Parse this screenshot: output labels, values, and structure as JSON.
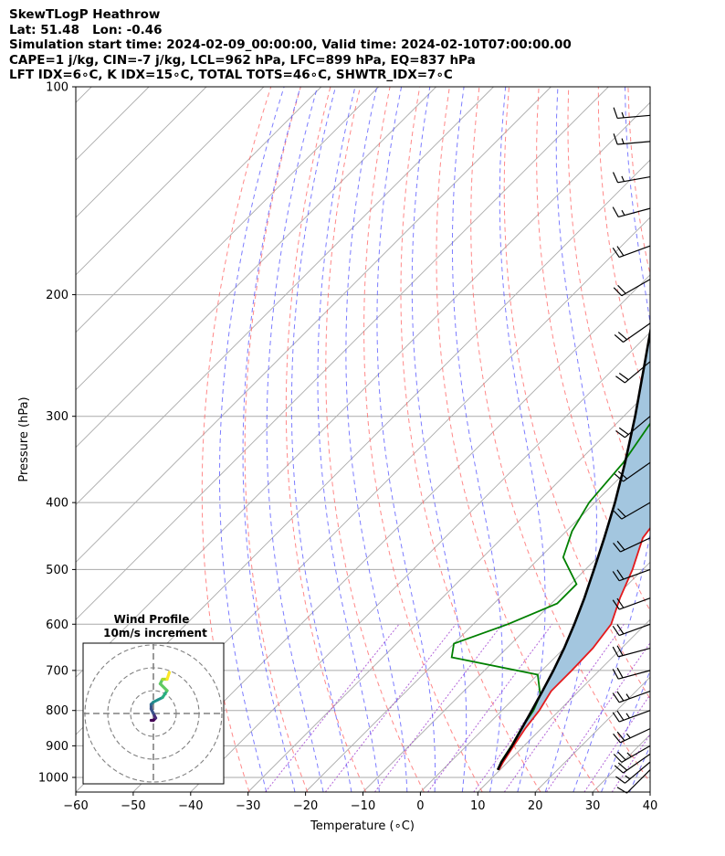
{
  "header": {
    "line1": "SkewTLogP Heathrow",
    "line2": "Lat: 51.48   Lon: -0.46",
    "line3": "Simulation start time: 2024-02-09_00:00:00, Valid time: 2024-02-10T07:00:00.00",
    "line4": "CAPE=1 j/kg, CIN=-7 j/kg, LCL=962 hPa, LFC=899 hPa, EQ=837 hPa",
    "line5": "LFT IDX=6∘C, K IDX=15∘C, TOTAL TOTS=46∘C, SHWTR_IDX=7∘C"
  },
  "colors": {
    "temperature": "#e41a1c",
    "dewpoint": "#008000",
    "parcel": "#000000",
    "cape_fill": "#a3c6df",
    "dry_adiabats": "#ff6060",
    "moist_adiabats": "#5050ff",
    "mixing_ratio": "#9932cc",
    "isotherms": "#aaaaaa"
  },
  "chart_data": [
    {
      "type": "line",
      "subtype": "skew-t log-p",
      "xlabel": "Temperature (∘C)",
      "ylabel": "Pressure (hPa)",
      "xlim": [
        -60,
        40
      ],
      "ylim": [
        1050,
        100
      ],
      "y_scale": "log",
      "grid": true,
      "x_ticks": [
        "−60",
        "−50",
        "−40",
        "−30",
        "−20",
        "−10",
        "0",
        "10",
        "20",
        "30",
        "40"
      ],
      "y_ticks": [
        "100",
        "200",
        "300",
        "400",
        "500",
        "600",
        "700",
        "800",
        "900",
        "1000"
      ],
      "series": [
        {
          "key": "temperature",
          "points": [
            [
              9.8,
              975
            ],
            [
              9.2,
              950
            ],
            [
              8.2,
              900
            ],
            [
              7.2,
              850
            ],
            [
              6.5,
              800
            ],
            [
              5.2,
              750
            ],
            [
              5.2,
              700
            ],
            [
              5.0,
              650
            ],
            [
              4.0,
              600
            ],
            [
              1.0,
              550
            ],
            [
              -1.8,
              500
            ],
            [
              -5.5,
              450
            ],
            [
              -7.0,
              400
            ],
            [
              -12,
              350
            ],
            [
              -16.5,
              300
            ],
            [
              -20,
              265
            ],
            [
              -20,
              250
            ],
            [
              -17,
              225
            ],
            [
              -13,
              200
            ],
            [
              -9,
              180
            ],
            [
              -7.5,
              165
            ],
            [
              -7.5,
              150
            ],
            [
              -8,
              140
            ],
            [
              -8,
              130
            ],
            [
              -8,
              120
            ],
            [
              -7,
              110
            ],
            [
              -6.5,
              100
            ]
          ]
        },
        {
          "key": "dewpoint",
          "points": [
            [
              9.6,
              975
            ],
            [
              8.8,
              950
            ],
            [
              7.8,
              900
            ],
            [
              6.5,
              850
            ],
            [
              5.5,
              800
            ],
            [
              4.0,
              760
            ],
            [
              0.0,
              710
            ],
            [
              -18,
              670
            ],
            [
              -20,
              640
            ],
            [
              -14,
              600
            ],
            [
              -9,
              560
            ],
            [
              -9,
              525
            ],
            [
              -16,
              480
            ],
            [
              -19,
              440
            ],
            [
              -21,
              400
            ],
            [
              -22,
              350
            ],
            [
              -24.5,
              300
            ],
            [
              -26.5,
              270
            ],
            [
              -27,
              240
            ],
            [
              -28,
              210
            ],
            [
              -30.5,
              185
            ],
            [
              -33.5,
              170
            ],
            [
              -36,
              155
            ],
            [
              -39,
              140
            ],
            [
              -42,
              120
            ],
            [
              -44,
              100
            ]
          ]
        },
        {
          "key": "parcel",
          "points": [
            [
              9.6,
              975
            ],
            [
              8.9,
              950
            ],
            [
              7.9,
              900
            ],
            [
              6.6,
              850
            ],
            [
              5.2,
              800
            ],
            [
              3.7,
              750
            ],
            [
              2.0,
              700
            ],
            [
              0.0,
              650
            ],
            [
              -2.4,
              600
            ],
            [
              -5.2,
              550
            ],
            [
              -8.5,
              500
            ],
            [
              -12.2,
              450
            ],
            [
              -16.5,
              400
            ],
            [
              -21.7,
              350
            ],
            [
              -28,
              300
            ],
            [
              -35.8,
              250
            ],
            [
              -45.4,
              200
            ],
            [
              -52,
              175
            ],
            [
              -57.9,
              150
            ],
            [
              -63.5,
              130
            ],
            [
              -68.5,
              115
            ],
            [
              -71.5,
              100
            ]
          ]
        }
      ],
      "wind_barbs": [
        {
          "p": 975,
          "speed_kt": 10,
          "dir_deg": 225
        },
        {
          "p": 950,
          "speed_kt": 15,
          "dir_deg": 230
        },
        {
          "p": 925,
          "speed_kt": 20,
          "dir_deg": 235
        },
        {
          "p": 900,
          "speed_kt": 25,
          "dir_deg": 240
        },
        {
          "p": 850,
          "speed_kt": 25,
          "dir_deg": 245
        },
        {
          "p": 800,
          "speed_kt": 25,
          "dir_deg": 250
        },
        {
          "p": 750,
          "speed_kt": 25,
          "dir_deg": 250
        },
        {
          "p": 700,
          "speed_kt": 20,
          "dir_deg": 255
        },
        {
          "p": 650,
          "speed_kt": 20,
          "dir_deg": 255
        },
        {
          "p": 600,
          "speed_kt": 20,
          "dir_deg": 250
        },
        {
          "p": 550,
          "speed_kt": 20,
          "dir_deg": 250
        },
        {
          "p": 500,
          "speed_kt": 20,
          "dir_deg": 250
        },
        {
          "p": 450,
          "speed_kt": 20,
          "dir_deg": 245
        },
        {
          "p": 400,
          "speed_kt": 20,
          "dir_deg": 240
        },
        {
          "p": 350,
          "speed_kt": 20,
          "dir_deg": 235
        },
        {
          "p": 300,
          "speed_kt": 20,
          "dir_deg": 230
        },
        {
          "p": 250,
          "speed_kt": 20,
          "dir_deg": 230
        },
        {
          "p": 220,
          "speed_kt": 20,
          "dir_deg": 235
        },
        {
          "p": 190,
          "speed_kt": 20,
          "dir_deg": 240
        },
        {
          "p": 170,
          "speed_kt": 20,
          "dir_deg": 250
        },
        {
          "p": 150,
          "speed_kt": 15,
          "dir_deg": 255
        },
        {
          "p": 135,
          "speed_kt": 15,
          "dir_deg": 260
        },
        {
          "p": 120,
          "speed_kt": 15,
          "dir_deg": 265
        },
        {
          "p": 110,
          "speed_kt": 15,
          "dir_deg": 265
        }
      ]
    },
    {
      "type": "line",
      "subtype": "hodograph",
      "title": "Wind Profile",
      "subtitle": "10m/s increment",
      "colormap": "viridis",
      "points": [
        [
          -1.0,
          -3.0
        ],
        [
          0.0,
          -3.0
        ],
        [
          1.0,
          -2.0
        ],
        [
          0.0,
          0.0
        ],
        [
          -1.0,
          2.0
        ],
        [
          -1.0,
          4.0
        ],
        [
          0.0,
          5.0
        ],
        [
          2.0,
          6.0
        ],
        [
          4.0,
          7.0
        ],
        [
          6.0,
          10.0
        ],
        [
          3.0,
          13.0
        ],
        [
          4.0,
          15.0
        ],
        [
          6.0,
          15.0
        ],
        [
          7.0,
          18.0
        ]
      ]
    }
  ]
}
